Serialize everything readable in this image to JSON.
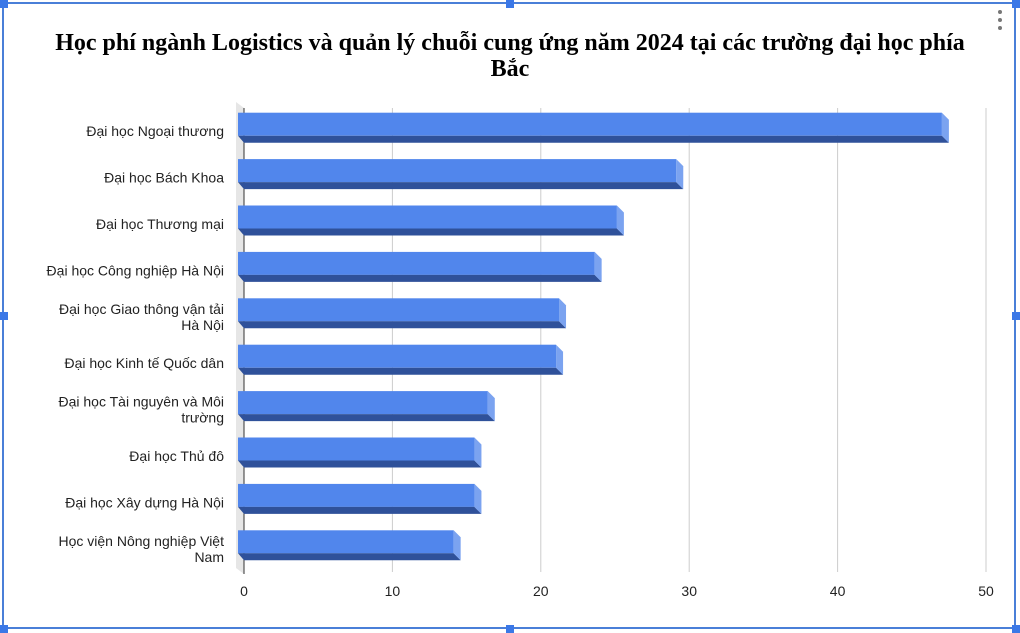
{
  "chart_data": {
    "type": "bar",
    "orientation": "horizontal",
    "title": "Học phí ngành Logistics và quản lý chuỗi cung ứng năm 2024 tại các trường đại học phía Bắc",
    "categories": [
      "Đại học Ngoại thương",
      "Đại học Bách Khoa",
      "Đại học Thương mại",
      "Đại học Công nghiệp Hà Nội",
      "Đại học Giao thông vận tải Hà Nội",
      "Đại học Kinh tế Quốc dân",
      "Đại học Tài nguyên và Môi trường",
      "Đại học Thủ đô",
      "Đại học Xây dựng Hà Nội",
      "Học viện Nông nghiệp Việt Nam"
    ],
    "category_lines": [
      [
        "Đại học Ngoại thương"
      ],
      [
        "Đại học Bách Khoa"
      ],
      [
        "Đại học Thương mại"
      ],
      [
        "Đại học Công nghiệp Hà Nội"
      ],
      [
        "Đại học Giao thông vận tải",
        "Hà Nội"
      ],
      [
        "Đại học Kinh tế Quốc dân"
      ],
      [
        "Đại học Tài nguyên và Môi",
        "trường"
      ],
      [
        "Đại học Thủ đô"
      ],
      [
        "Đại học Xây dựng Hà Nội"
      ],
      [
        "Học viện Nông nghiệp Việt",
        "Nam"
      ]
    ],
    "values": [
      47.5,
      29.6,
      25.6,
      24.1,
      21.7,
      21.5,
      16.9,
      16.0,
      16.0,
      14.6
    ],
    "xlim": [
      0,
      50
    ],
    "xticks": [
      0,
      10,
      20,
      30,
      40,
      50
    ],
    "grid": true,
    "legend": "none",
    "xlabel": "",
    "ylabel": "",
    "colors": {
      "bar_face": "#5186ec",
      "bar_bottom": "#2f519a",
      "bar_side": "#7ba3f0",
      "grid": "#cccccc"
    }
  }
}
